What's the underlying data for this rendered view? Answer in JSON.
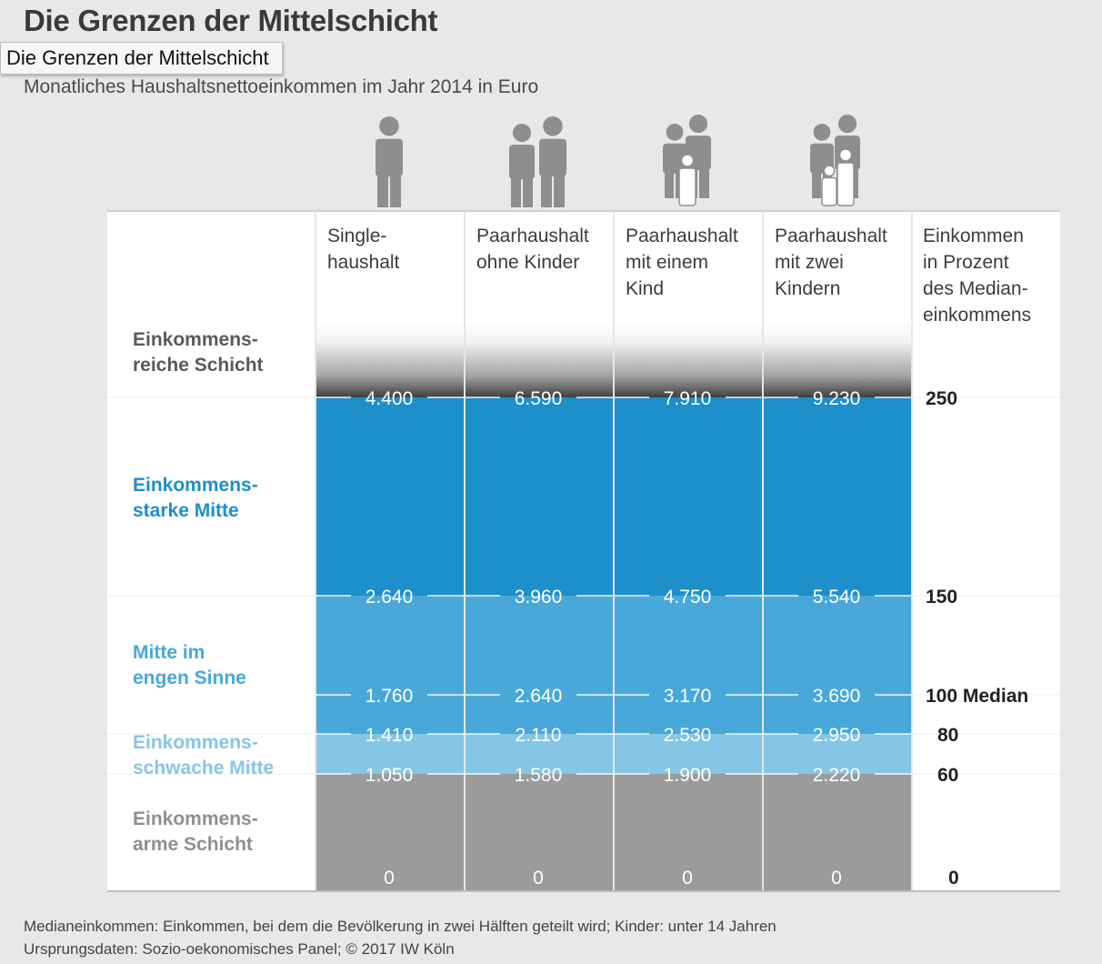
{
  "tooltip": "Die Grenzen der Mittelschicht",
  "chart_data": {
    "type": "table",
    "title": "Die Grenzen der Mittelschicht",
    "subtitle": "Monatliches Haushaltsnettoeinkommen im Jahr 2014 in Euro",
    "columns": [
      {
        "lines": [
          "Single-",
          "haushalt"
        ],
        "icon": "single-person-icon"
      },
      {
        "lines": [
          "Paarhaushalt",
          "ohne Kinder"
        ],
        "icon": "couple-icon"
      },
      {
        "lines": [
          "Paarhaushalt",
          "mit einem",
          "Kind"
        ],
        "icon": "couple-one-child-icon"
      },
      {
        "lines": [
          "Paarhaushalt",
          "mit zwei",
          "Kindern"
        ],
        "icon": "couple-two-children-icon"
      }
    ],
    "percent_header": [
      "Einkommen",
      "in Prozent",
      "des Median-",
      "einkommens"
    ],
    "thresholds": [
      {
        "percent": 250,
        "percent_label": "250",
        "values": [
          "4.400",
          "6.590",
          "7.910",
          "9.230"
        ]
      },
      {
        "percent": 150,
        "percent_label": "150",
        "values": [
          "2.640",
          "3.960",
          "4.750",
          "5.540"
        ]
      },
      {
        "percent": 100,
        "percent_label": "100 Median",
        "values": [
          "1.760",
          "2.640",
          "3.170",
          "3.690"
        ]
      },
      {
        "percent": 80,
        "percent_label": "80",
        "values": [
          "1.410",
          "2.110",
          "2.530",
          "2.950"
        ]
      },
      {
        "percent": 60,
        "percent_label": "60",
        "values": [
          "1.050",
          "1.580",
          "1.900",
          "2.220"
        ]
      },
      {
        "percent": 0,
        "percent_label": "0",
        "values": [
          "0",
          "0",
          "0",
          "0"
        ]
      }
    ],
    "bands": [
      {
        "name": [
          "Einkommens-",
          "reiche Schicht"
        ],
        "from": 250,
        "to": null,
        "color": "#555555",
        "label_color": "#5a5a5a"
      },
      {
        "name": [
          "Einkommens-",
          "starke Mitte"
        ],
        "from": 150,
        "to": 250,
        "color": "#1d8fcb",
        "label_color": "#1d8fcb"
      },
      {
        "name": [
          "Mitte im",
          "engen Sinne"
        ],
        "from": 80,
        "to": 150,
        "color": "#48a8da",
        "label_color": "#48a8da"
      },
      {
        "name": [
          "Einkommens-",
          "schwache Mitte"
        ],
        "from": 60,
        "to": 80,
        "color": "#85c6e6",
        "label_color": "#85c6e6"
      },
      {
        "name": [
          "Einkommens-",
          "arme Schicht"
        ],
        "from": 0,
        "to": 60,
        "color": "#9b9b9b",
        "label_color": "#8f8f8f"
      }
    ]
  },
  "footnotes": [
    "Medianeinkommen: Einkommen, bei dem die Bevölkerung in zwei Hälften geteilt wird; Kinder: unter 14 Jahren",
    "Ursprungsdaten: Sozio-oekonomisches Panel; © 2017 IW Köln"
  ]
}
